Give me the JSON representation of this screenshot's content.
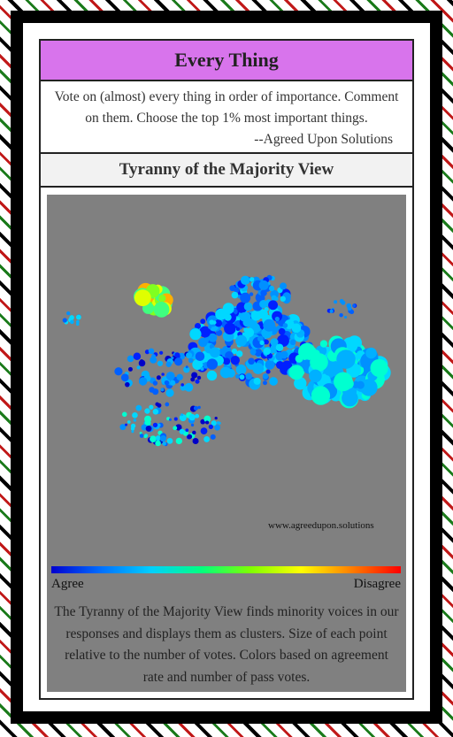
{
  "header": {
    "title": "Every Thing"
  },
  "description": {
    "text": "Vote on (almost) every thing in order of importance. Comment on them. Choose the top 1% most important things.",
    "attribution": "--Agreed Upon Solutions"
  },
  "section": {
    "title": "Tyranny of the Majority View"
  },
  "visualization": {
    "watermark": "www.agreedupon.solutions",
    "scale_left": "Agree",
    "scale_right": "Disagree",
    "caption": "The Tyranny of the Majority View finds minority voices in our responses and displays them as clusters. Size of each point relative to the number of votes. Colors based on agreement rate and number of pass votes."
  }
}
